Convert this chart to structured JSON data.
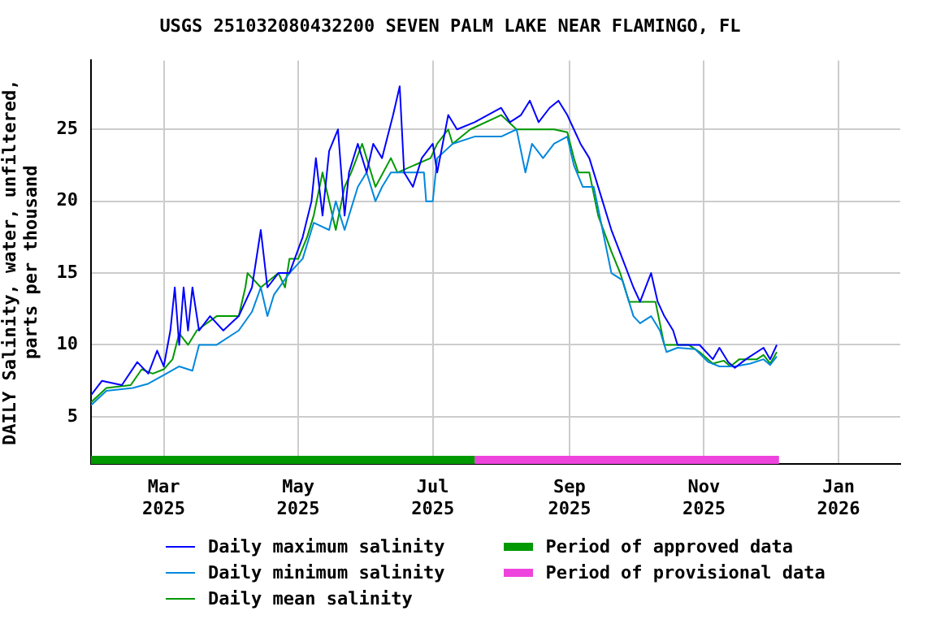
{
  "chart_data": {
    "type": "line",
    "title": "USGS 251032080432200 SEVEN PALM LAKE NEAR FLAMINGO, FL",
    "ylabel": "DAILY Salinity, water, unfiltered, parts per thousand",
    "xlim": [
      "2025-01-27",
      "2026-01-29"
    ],
    "xticks": [
      {
        "value": "2025-03-01",
        "label": "Mar 2025"
      },
      {
        "value": "2025-05-01",
        "label": "May 2025"
      },
      {
        "value": "2025-07-01",
        "label": "Jul 2025"
      },
      {
        "value": "2025-09-01",
        "label": "Sep 2025"
      },
      {
        "value": "2025-11-01",
        "label": "Nov 2025"
      },
      {
        "value": "2026-01-01",
        "label": "Jan 2026"
      }
    ],
    "ylim": [
      1.7,
      29.8
    ],
    "yticks": [
      5,
      10,
      15,
      20,
      25
    ],
    "grid": true,
    "legend": "bottom",
    "line_style": "solid",
    "marker": "none",
    "series": [
      {
        "name": "Daily maximum salinity",
        "color": "#0000ff",
        "x": [
          "2025-01-27",
          "2025-02-01",
          "2025-02-10",
          "2025-02-17",
          "2025-02-22",
          "2025-02-26",
          "2025-03-01",
          "2025-03-04",
          "2025-03-06",
          "2025-03-08",
          "2025-03-10",
          "2025-03-12",
          "2025-03-14",
          "2025-03-17",
          "2025-03-22",
          "2025-03-28",
          "2025-04-04",
          "2025-04-10",
          "2025-04-14",
          "2025-04-17",
          "2025-04-22",
          "2025-04-27",
          "2025-05-03",
          "2025-05-07",
          "2025-05-09",
          "2025-05-12",
          "2025-05-15",
          "2025-05-19",
          "2025-05-22",
          "2025-05-24",
          "2025-05-28",
          "2025-06-01",
          "2025-06-04",
          "2025-06-08",
          "2025-06-13",
          "2025-06-16",
          "2025-06-18",
          "2025-06-22",
          "2025-06-26",
          "2025-07-01",
          "2025-07-03",
          "2025-07-08",
          "2025-07-12",
          "2025-07-20",
          "2025-08-01",
          "2025-08-05",
          "2025-08-10",
          "2025-08-14",
          "2025-08-18",
          "2025-08-23",
          "2025-08-27",
          "2025-08-31",
          "2025-09-03",
          "2025-09-06",
          "2025-09-10",
          "2025-09-16",
          "2025-09-20",
          "2025-09-25",
          "2025-09-30",
          "2025-10-03",
          "2025-10-08",
          "2025-10-11",
          "2025-10-14",
          "2025-10-18",
          "2025-10-20",
          "2025-10-30",
          "2025-11-05",
          "2025-11-08",
          "2025-11-12",
          "2025-11-15",
          "2025-11-20",
          "2025-11-28",
          "2025-12-01",
          "2025-12-04"
        ],
        "values": [
          6.5,
          7.5,
          7.2,
          8.8,
          8.0,
          9.6,
          8.5,
          11,
          14,
          10,
          14,
          11,
          14,
          11,
          12,
          11,
          12,
          14,
          18,
          14,
          15,
          15,
          17.5,
          20,
          23,
          19,
          23.5,
          25,
          19,
          22,
          24,
          22,
          24,
          23,
          26,
          28,
          22,
          21,
          23,
          24,
          22,
          26,
          25,
          25.5,
          26.5,
          25.5,
          26,
          27,
          25.5,
          26.5,
          27,
          26,
          25,
          24,
          23,
          20,
          18,
          16,
          14,
          13,
          15,
          13,
          12,
          11,
          10,
          10,
          9,
          9.8,
          8.8,
          8.4,
          9.0,
          9.8,
          9.0,
          10.0
        ]
      },
      {
        "name": "Daily minimum salinity",
        "color": "#0088dd",
        "x": [
          "2025-01-27",
          "2025-02-03",
          "2025-02-15",
          "2025-02-22",
          "2025-03-01",
          "2025-03-08",
          "2025-03-14",
          "2025-03-17",
          "2025-03-25",
          "2025-04-04",
          "2025-04-10",
          "2025-04-14",
          "2025-04-17",
          "2025-04-20",
          "2025-04-27",
          "2025-05-03",
          "2025-05-05",
          "2025-05-08",
          "2025-05-15",
          "2025-05-18",
          "2025-05-22",
          "2025-05-28",
          "2025-06-01",
          "2025-06-05",
          "2025-06-08",
          "2025-06-12",
          "2025-06-20",
          "2025-06-27",
          "2025-06-28",
          "2025-07-01",
          "2025-07-03",
          "2025-07-10",
          "2025-07-20",
          "2025-08-01",
          "2025-08-08",
          "2025-08-10",
          "2025-08-12",
          "2025-08-15",
          "2025-08-20",
          "2025-08-25",
          "2025-08-31",
          "2025-09-03",
          "2025-09-07",
          "2025-09-12",
          "2025-09-16",
          "2025-09-20",
          "2025-09-25",
          "2025-09-30",
          "2025-10-03",
          "2025-10-08",
          "2025-10-12",
          "2025-10-15",
          "2025-10-20",
          "2025-10-28",
          "2025-11-03",
          "2025-11-08",
          "2025-11-15",
          "2025-11-22",
          "2025-11-28",
          "2025-12-01",
          "2025-12-04"
        ],
        "values": [
          5.8,
          6.8,
          7.0,
          7.3,
          7.9,
          8.5,
          8.2,
          10,
          10,
          11,
          12.3,
          14,
          12,
          13.5,
          15,
          16,
          17,
          18.5,
          18,
          20,
          18,
          21,
          22,
          20,
          21,
          22,
          22,
          22,
          20,
          20,
          23,
          24,
          24.5,
          24.5,
          25,
          23.5,
          22,
          24,
          23,
          24,
          24.5,
          22.5,
          21,
          21,
          18,
          15,
          14.5,
          12,
          11.5,
          12,
          11,
          9.5,
          9.8,
          9.7,
          8.8,
          8.5,
          8.5,
          8.7,
          9,
          8.6,
          9.2
        ]
      },
      {
        "name": "Daily mean salinity",
        "color": "#009900",
        "x": [
          "2025-01-27",
          "2025-02-03",
          "2025-02-14",
          "2025-02-19",
          "2025-02-24",
          "2025-03-01",
          "2025-03-05",
          "2025-03-08",
          "2025-03-12",
          "2025-03-16",
          "2025-03-25",
          "2025-04-04",
          "2025-04-07",
          "2025-04-08",
          "2025-04-14",
          "2025-04-22",
          "2025-04-25",
          "2025-04-27",
          "2025-05-01",
          "2025-05-05",
          "2025-05-08",
          "2025-05-12",
          "2025-05-15",
          "2025-05-18",
          "2025-05-22",
          "2025-05-25",
          "2025-05-30",
          "2025-06-05",
          "2025-06-12",
          "2025-06-15",
          "2025-06-30",
          "2025-07-03",
          "2025-07-08",
          "2025-07-10",
          "2025-07-18",
          "2025-08-01",
          "2025-08-08",
          "2025-08-15",
          "2025-08-25",
          "2025-08-31",
          "2025-09-03",
          "2025-09-05",
          "2025-09-10",
          "2025-09-14",
          "2025-09-20",
          "2025-09-24",
          "2025-09-28",
          "2025-10-03",
          "2025-10-10",
          "2025-10-14",
          "2025-10-25",
          "2025-10-30",
          "2025-11-05",
          "2025-11-10",
          "2025-11-13",
          "2025-11-17",
          "2025-11-25",
          "2025-11-28",
          "2025-12-01",
          "2025-12-04"
        ],
        "values": [
          6.0,
          7.0,
          7.2,
          8.3,
          8.0,
          8.3,
          9.0,
          10.8,
          10.0,
          11.0,
          12.0,
          12.0,
          14.0,
          15,
          14.0,
          15,
          14,
          16,
          16,
          17.5,
          19,
          22,
          20,
          18,
          21,
          22,
          24,
          21,
          23,
          22,
          23,
          24,
          25,
          24,
          25,
          26,
          25,
          25,
          25,
          24.8,
          23,
          22,
          22,
          19,
          16.5,
          15,
          13,
          13,
          13,
          10,
          10,
          9.5,
          8.7,
          8.9,
          8.5,
          9.0,
          9,
          9.3,
          8.7,
          9.5
        ]
      },
      {
        "name": "Period of approved data",
        "color": "#009900",
        "x": [
          "2025-01-27",
          "2025-07-20"
        ],
        "values": [
          2.0,
          2.0
        ]
      },
      {
        "name": "Period of provisional data",
        "color": "#ee44dd",
        "x": [
          "2025-07-20",
          "2025-12-05"
        ],
        "values": [
          2.0,
          2.0
        ]
      }
    ]
  }
}
